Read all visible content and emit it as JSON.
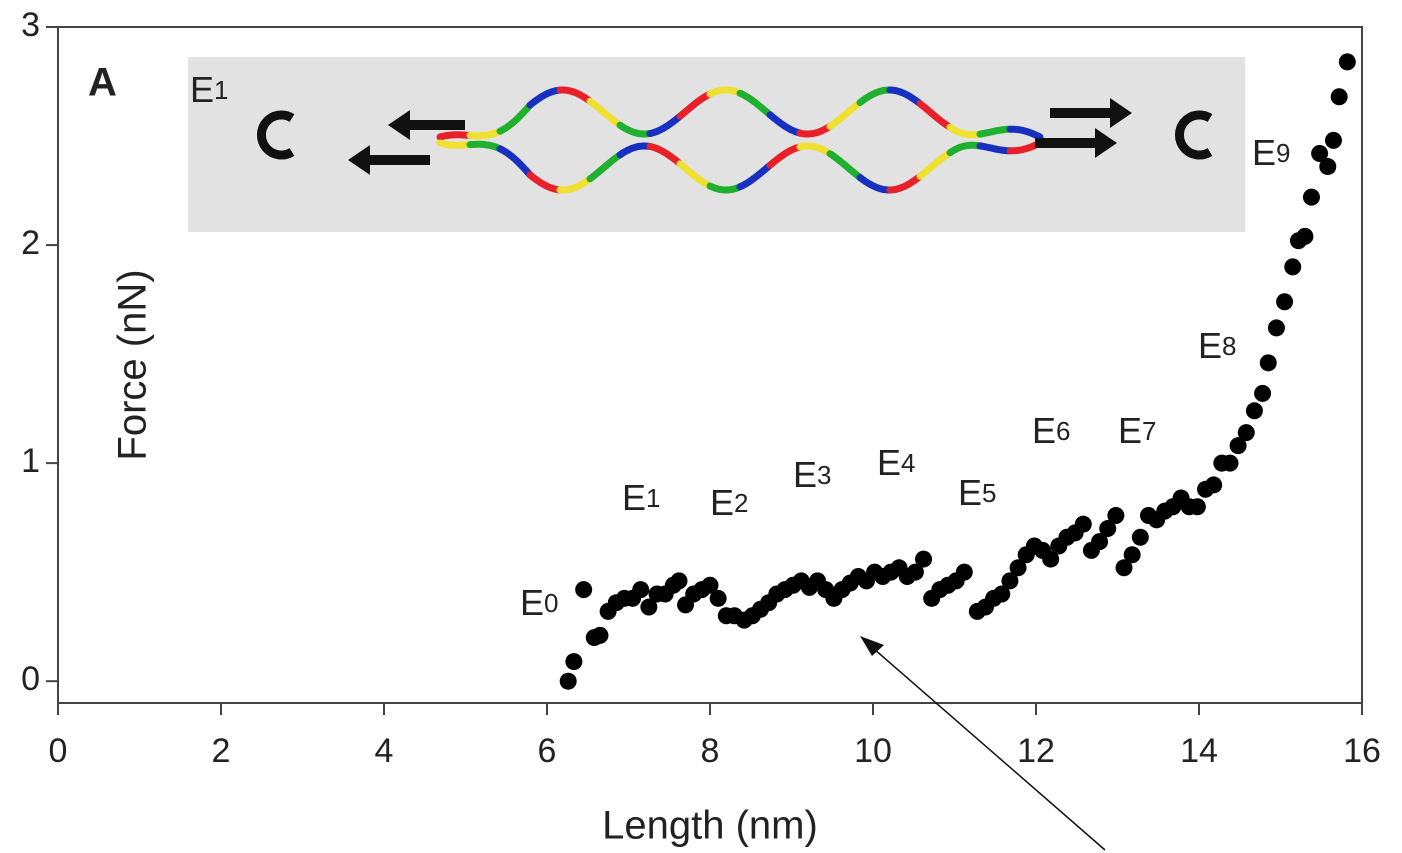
{
  "chart_data": {
    "type": "scatter",
    "panel_label": "A",
    "x_label": "Length (nm)",
    "y_label": "Force (nN)",
    "xlim": [
      0,
      16
    ],
    "ylim": [
      -0.1,
      3
    ],
    "xticks": [
      0,
      2,
      4,
      6,
      8,
      10,
      12,
      14,
      16
    ],
    "yticks": [
      0,
      1,
      2,
      3
    ],
    "color": "#000000",
    "annotations": [
      "E0",
      "E1",
      "E2",
      "E3",
      "E4",
      "E5",
      "E6",
      "E7",
      "E8",
      "E9",
      "E1"
    ],
    "x": [
      6.26,
      6.33,
      6.45,
      6.58,
      6.65,
      6.75,
      6.85,
      6.95,
      7.05,
      7.15,
      7.25,
      7.35,
      7.45,
      7.55,
      7.62,
      7.7,
      7.8,
      7.9,
      8.0,
      8.1,
      8.2,
      8.3,
      8.42,
      8.52,
      8.62,
      8.72,
      8.82,
      8.92,
      9.02,
      9.12,
      9.22,
      9.32,
      9.42,
      9.52,
      9.62,
      9.72,
      9.82,
      9.92,
      10.02,
      10.12,
      10.22,
      10.32,
      10.42,
      10.52,
      10.62,
      10.72,
      10.82,
      10.92,
      11.02,
      11.12,
      11.28,
      11.38,
      11.48,
      11.58,
      11.68,
      11.78,
      11.88,
      11.98,
      12.08,
      12.18,
      12.28,
      12.38,
      12.48,
      12.58,
      12.68,
      12.78,
      12.88,
      12.98,
      13.08,
      13.18,
      13.28,
      13.38,
      13.48,
      13.58,
      13.68,
      13.78,
      13.88,
      13.98,
      14.08,
      14.18,
      14.28,
      14.38,
      14.48,
      14.58,
      14.68,
      14.78,
      14.85,
      14.95,
      15.05,
      15.15,
      15.22,
      15.3,
      15.38,
      15.48,
      15.58,
      15.65,
      15.72,
      15.82
    ],
    "values": [
      0.0,
      0.09,
      0.42,
      0.2,
      0.21,
      0.32,
      0.36,
      0.38,
      0.38,
      0.42,
      0.34,
      0.4,
      0.4,
      0.44,
      0.46,
      0.35,
      0.4,
      0.42,
      0.44,
      0.38,
      0.3,
      0.3,
      0.28,
      0.3,
      0.33,
      0.36,
      0.4,
      0.42,
      0.44,
      0.46,
      0.43,
      0.46,
      0.42,
      0.38,
      0.42,
      0.45,
      0.48,
      0.46,
      0.5,
      0.48,
      0.5,
      0.52,
      0.48,
      0.5,
      0.56,
      0.38,
      0.42,
      0.44,
      0.46,
      0.5,
      0.32,
      0.34,
      0.38,
      0.4,
      0.46,
      0.52,
      0.58,
      0.62,
      0.6,
      0.56,
      0.62,
      0.66,
      0.68,
      0.72,
      0.6,
      0.64,
      0.7,
      0.76,
      0.52,
      0.58,
      0.66,
      0.76,
      0.74,
      0.78,
      0.8,
      0.84,
      0.8,
      0.8,
      0.88,
      0.9,
      1.0,
      1.0,
      1.08,
      1.14,
      1.24,
      1.32,
      1.46,
      1.62,
      1.74,
      1.9,
      2.02,
      2.04,
      2.22,
      2.42,
      2.36,
      2.48,
      2.68,
      2.84
    ]
  }
}
